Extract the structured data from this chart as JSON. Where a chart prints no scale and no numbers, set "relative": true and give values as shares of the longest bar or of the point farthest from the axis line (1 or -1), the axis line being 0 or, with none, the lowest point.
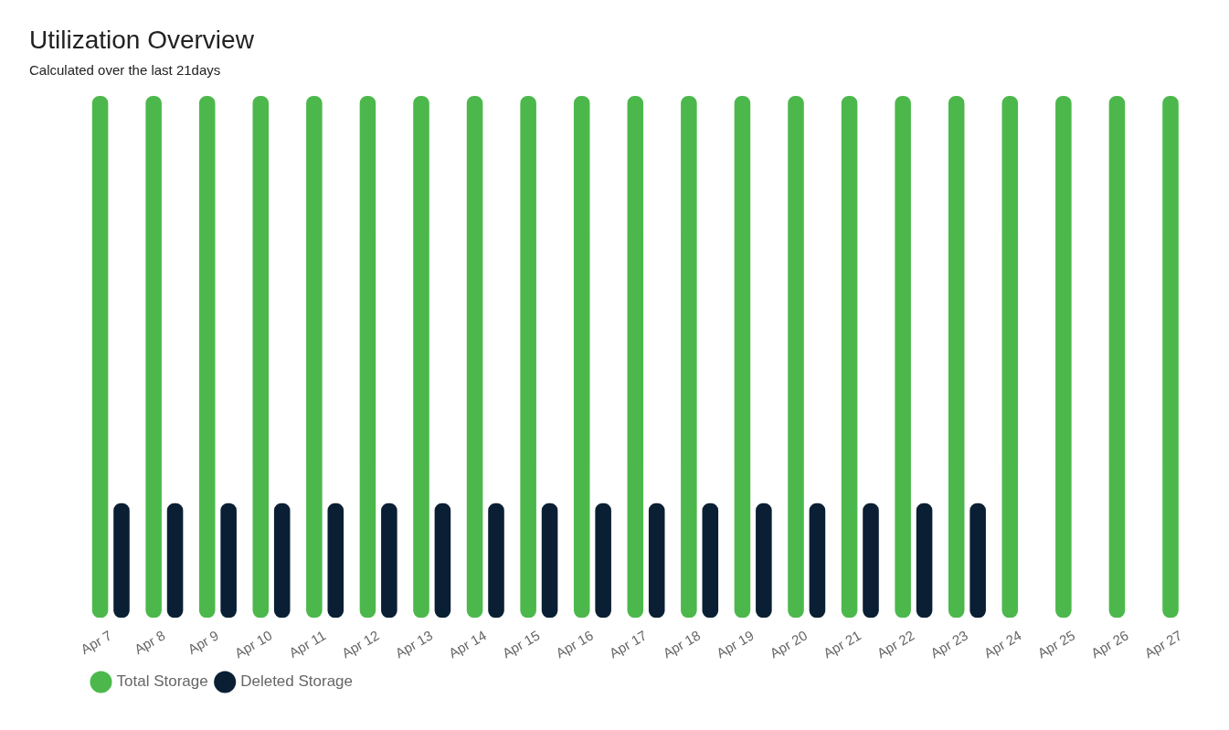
{
  "chart_data": {
    "type": "bar",
    "title": "Utilization Overview",
    "subtitle": "Calculated over the last 21days",
    "categories": [
      "Apr 7",
      "Apr 8",
      "Apr 9",
      "Apr 10",
      "Apr 11",
      "Apr 12",
      "Apr 13",
      "Apr 14",
      "Apr 15",
      "Apr 16",
      "Apr 17",
      "Apr 18",
      "Apr 19",
      "Apr 20",
      "Apr 21",
      "Apr 22",
      "Apr 23",
      "Apr 24",
      "Apr 25",
      "Apr 26",
      "Apr 27"
    ],
    "relative": true,
    "series": [
      {
        "name": "Total Storage",
        "color": "#4cb84c",
        "values": [
          1,
          1,
          1,
          1,
          1,
          1,
          1,
          1,
          1,
          1,
          1,
          1,
          1,
          1,
          1,
          1,
          1,
          1,
          1,
          1,
          1
        ]
      },
      {
        "name": "Deleted Storage",
        "color": "#0a1f33",
        "values": [
          0.22,
          0.22,
          0.22,
          0.22,
          0.22,
          0.22,
          0.22,
          0.22,
          0.22,
          0.22,
          0.22,
          0.22,
          0.22,
          0.22,
          0.22,
          0.22,
          0.22,
          0,
          0,
          0,
          0
        ]
      }
    ],
    "grid": false,
    "legend": "bottom left"
  }
}
